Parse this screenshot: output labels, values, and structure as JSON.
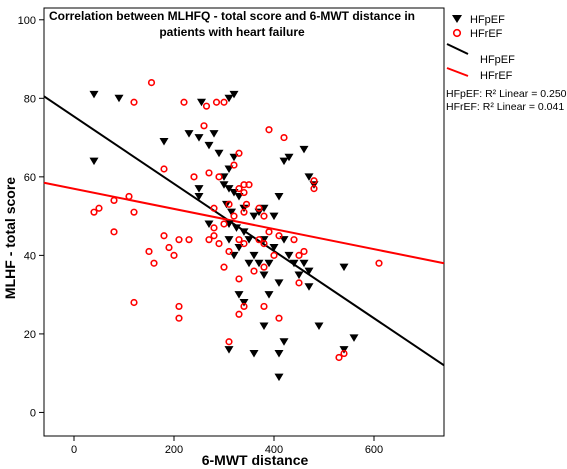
{
  "chart_data": {
    "type": "scatter",
    "title_lines": [
      "Correlation between MLHFQ - total score and 6-MWT distance in",
      "patients with heart failure"
    ],
    "xlabel": "6-MWT distance",
    "ylabel": "MLHF - total score",
    "xlim": [
      -60,
      740
    ],
    "ylim": [
      -6,
      103
    ],
    "x_ticks": [
      0,
      200,
      400,
      600
    ],
    "y_ticks": [
      0,
      20,
      40,
      60,
      80,
      100
    ],
    "grid": false,
    "legend_position": "right",
    "series": [
      {
        "name": "HFpEF",
        "marker": "triangle-down",
        "color": "#000000",
        "points": [
          [
            40,
            81
          ],
          [
            40,
            64
          ],
          [
            90,
            80
          ],
          [
            180,
            69
          ],
          [
            230,
            71
          ],
          [
            250,
            70
          ],
          [
            255,
            79
          ],
          [
            270,
            68
          ],
          [
            280,
            71
          ],
          [
            290,
            66
          ],
          [
            310,
            80
          ],
          [
            320,
            81
          ],
          [
            320,
            65
          ],
          [
            310,
            62
          ],
          [
            300,
            60
          ],
          [
            250,
            57
          ],
          [
            310,
            57
          ],
          [
            320,
            56
          ],
          [
            330,
            55
          ],
          [
            305,
            53
          ],
          [
            315,
            51
          ],
          [
            340,
            52
          ],
          [
            360,
            50
          ],
          [
            370,
            51
          ],
          [
            380,
            52
          ],
          [
            400,
            50
          ],
          [
            310,
            48
          ],
          [
            325,
            47
          ],
          [
            340,
            46
          ],
          [
            350,
            44
          ],
          [
            310,
            44
          ],
          [
            330,
            42
          ],
          [
            360,
            40
          ],
          [
            370,
            38
          ],
          [
            380,
            44
          ],
          [
            400,
            42
          ],
          [
            420,
            44
          ],
          [
            430,
            40
          ],
          [
            440,
            38
          ],
          [
            450,
            35
          ],
          [
            460,
            38
          ],
          [
            470,
            36
          ],
          [
            320,
            40
          ],
          [
            330,
            30
          ],
          [
            340,
            28
          ],
          [
            390,
            30
          ],
          [
            410,
            33
          ],
          [
            420,
            18
          ],
          [
            360,
            15
          ],
          [
            410,
            15
          ],
          [
            470,
            32
          ],
          [
            490,
            22
          ],
          [
            540,
            16
          ],
          [
            560,
            19
          ],
          [
            540,
            37
          ],
          [
            480,
            58
          ],
          [
            470,
            60
          ],
          [
            460,
            67
          ],
          [
            430,
            65
          ],
          [
            420,
            64
          ],
          [
            410,
            55
          ],
          [
            380,
            35
          ],
          [
            350,
            38
          ],
          [
            410,
            9
          ],
          [
            310,
            16
          ],
          [
            380,
            22
          ],
          [
            390,
            38
          ],
          [
            250,
            55
          ],
          [
            300,
            58
          ],
          [
            270,
            48
          ]
        ]
      },
      {
        "name": "HFrEF",
        "marker": "circle-open",
        "color": "#ff0000",
        "points": [
          [
            155,
            84
          ],
          [
            120,
            79
          ],
          [
            220,
            79
          ],
          [
            265,
            78
          ],
          [
            285,
            79
          ],
          [
            300,
            79
          ],
          [
            260,
            73
          ],
          [
            390,
            72
          ],
          [
            420,
            70
          ],
          [
            330,
            66
          ],
          [
            320,
            63
          ],
          [
            270,
            61
          ],
          [
            180,
            62
          ],
          [
            290,
            60
          ],
          [
            240,
            60
          ],
          [
            480,
            59
          ],
          [
            480,
            57
          ],
          [
            340,
            58
          ],
          [
            350,
            58
          ],
          [
            330,
            57
          ],
          [
            340,
            56
          ],
          [
            310,
            53
          ],
          [
            345,
            53
          ],
          [
            280,
            52
          ],
          [
            340,
            51
          ],
          [
            370,
            52
          ],
          [
            380,
            50
          ],
          [
            320,
            50
          ],
          [
            300,
            48
          ],
          [
            280,
            47
          ],
          [
            280,
            45
          ],
          [
            290,
            43
          ],
          [
            270,
            44
          ],
          [
            330,
            44
          ],
          [
            340,
            43
          ],
          [
            370,
            44
          ],
          [
            380,
            43
          ],
          [
            390,
            46
          ],
          [
            410,
            45
          ],
          [
            440,
            44
          ],
          [
            460,
            41
          ],
          [
            450,
            40
          ],
          [
            400,
            40
          ],
          [
            380,
            37
          ],
          [
            360,
            36
          ],
          [
            330,
            34
          ],
          [
            310,
            41
          ],
          [
            300,
            37
          ],
          [
            230,
            44
          ],
          [
            210,
            44
          ],
          [
            200,
            40
          ],
          [
            190,
            42
          ],
          [
            180,
            45
          ],
          [
            150,
            41
          ],
          [
            160,
            38
          ],
          [
            120,
            51
          ],
          [
            80,
            46
          ],
          [
            80,
            54
          ],
          [
            40,
            51
          ],
          [
            50,
            52
          ],
          [
            110,
            55
          ],
          [
            120,
            28
          ],
          [
            210,
            27
          ],
          [
            210,
            24
          ],
          [
            310,
            18
          ],
          [
            340,
            27
          ],
          [
            330,
            25
          ],
          [
            380,
            27
          ],
          [
            410,
            24
          ],
          [
            450,
            33
          ],
          [
            530,
            14
          ],
          [
            540,
            15
          ],
          [
            610,
            38
          ]
        ]
      }
    ],
    "fit_lines": [
      {
        "name": "HFpEF",
        "color": "#000000",
        "x": [
          -60,
          740
        ],
        "y": [
          80.5,
          12
        ],
        "r2_text": "HFpEF: R² Linear = 0.250"
      },
      {
        "name": "HFrEF",
        "color": "#ff0000",
        "x": [
          -60,
          740
        ],
        "y": [
          58.5,
          38
        ],
        "r2_text": "HFrEF: R² Linear = 0.041"
      }
    ]
  }
}
